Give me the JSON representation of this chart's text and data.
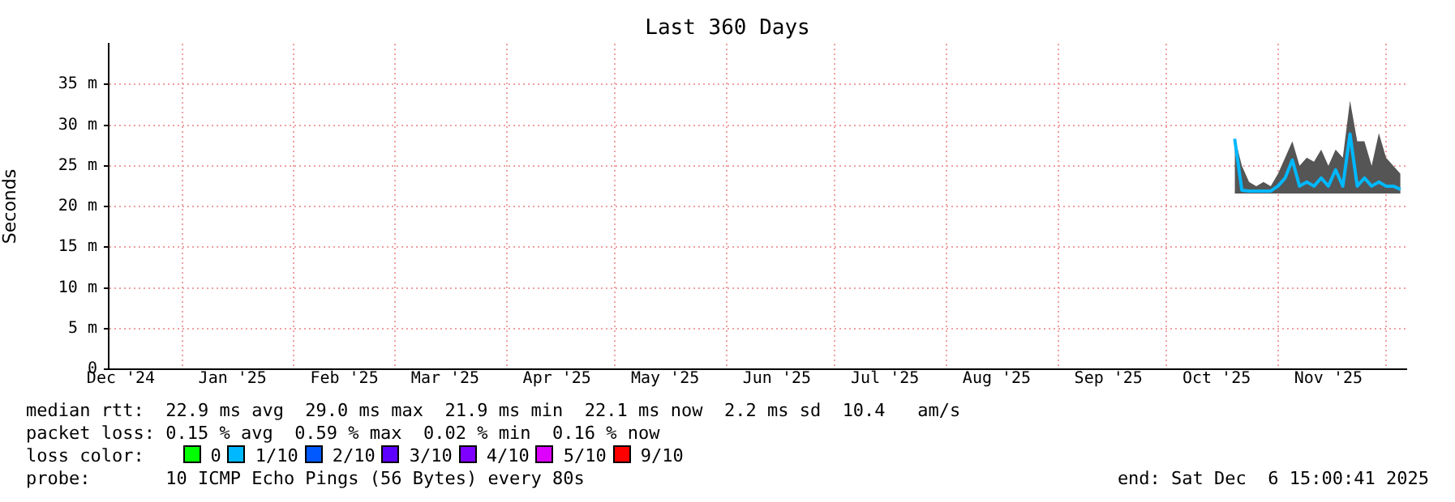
{
  "chart_data": {
    "type": "line",
    "title": "Last 360 Days",
    "ylabel": "Seconds",
    "x": [
      "2025-10-20",
      "2025-10-22",
      "2025-10-24",
      "2025-10-26",
      "2025-10-28",
      "2025-10-30",
      "2025-11-01",
      "2025-11-03",
      "2025-11-05",
      "2025-11-07",
      "2025-11-09",
      "2025-11-11",
      "2025-11-13",
      "2025-11-15",
      "2025-11-17",
      "2025-11-19",
      "2025-11-21",
      "2025-11-23",
      "2025-11-25",
      "2025-11-27",
      "2025-11-29",
      "2025-12-01",
      "2025-12-03",
      "2025-12-05"
    ],
    "series": [
      {
        "color": "#00b8ff",
        "values": [
          28.3,
          22.0,
          21.9,
          21.9,
          21.9,
          21.9,
          22.5,
          23.5,
          25.7,
          22.5,
          23.0,
          22.5,
          23.5,
          22.5,
          24.5,
          22.5,
          28.9,
          22.5,
          23.5,
          22.5,
          23.0,
          22.5,
          22.5,
          22.1
        ],
        "lower": [
          21.6,
          21.6,
          21.6,
          21.6,
          21.6,
          21.6,
          21.6,
          21.6,
          21.6,
          21.6,
          21.6,
          21.6,
          21.6,
          21.6,
          21.6,
          21.6,
          21.6,
          21.6,
          21.6,
          21.6,
          21.6,
          21.6,
          21.6,
          21.6
        ],
        "upper": [
          28.5,
          25,
          23,
          22.5,
          23,
          22.5,
          24,
          26,
          28,
          25,
          26,
          25.5,
          27,
          25,
          27,
          26,
          33,
          28,
          28,
          25,
          29,
          26,
          25,
          24
        ]
      }
    ],
    "xlim": [
      "2024-12-11T15:00",
      "2025-12-06T15:00"
    ],
    "xticks": [
      {
        "value": "2024-12-15",
        "label": "Dec '24"
      },
      {
        "value": "2025-01-01",
        "label": null
      },
      {
        "value": "2025-01-15",
        "label": "Jan '25"
      },
      {
        "value": "2025-02-01",
        "label": null
      },
      {
        "value": "2025-02-15",
        "label": "Feb '25"
      },
      {
        "value": "2025-03-01",
        "label": null
      },
      {
        "value": "2025-03-15",
        "label": "Mar '25"
      },
      {
        "value": "2025-04-01",
        "label": null
      },
      {
        "value": "2025-04-15",
        "label": "Apr '25"
      },
      {
        "value": "2025-05-01",
        "label": null
      },
      {
        "value": "2025-05-15",
        "label": "May '25"
      },
      {
        "value": "2025-06-01",
        "label": null
      },
      {
        "value": "2025-06-15",
        "label": "Jun '25"
      },
      {
        "value": "2025-07-01",
        "label": null
      },
      {
        "value": "2025-07-15",
        "label": "Jul '25"
      },
      {
        "value": "2025-08-01",
        "label": null
      },
      {
        "value": "2025-08-15",
        "label": "Aug '25"
      },
      {
        "value": "2025-09-01",
        "label": null
      },
      {
        "value": "2025-09-15",
        "label": "Sep '25"
      },
      {
        "value": "2025-10-01",
        "label": null
      },
      {
        "value": "2025-10-15",
        "label": "Oct '25"
      },
      {
        "value": "2025-11-01",
        "label": null
      },
      {
        "value": "2025-11-15",
        "label": "Nov '25"
      },
      {
        "value": "2025-12-01",
        "label": null
      }
    ],
    "ylim": [
      0,
      40
    ],
    "yticks": [
      {
        "value": 0,
        "label": "0"
      },
      {
        "value": 5,
        "label": "5 m"
      },
      {
        "value": 10,
        "label": "10 m"
      },
      {
        "value": 15,
        "label": "15 m"
      },
      {
        "value": 20,
        "label": "20 m"
      },
      {
        "value": 25,
        "label": "25 m"
      },
      {
        "value": 30,
        "label": "30 m"
      },
      {
        "value": 35,
        "label": "35 m"
      }
    ],
    "grid": true,
    "legend": false,
    "marker": "none",
    "line_style": "solid",
    "annotations": [
      "median rtt:  22.9 ms avg  29.0 ms max  21.9 ms min  22.1 ms now  2.2 ms sd  10.4   am/s",
      "packet loss: 0.15 % avg  0.59 % max  0.02 % min  0.16 % now",
      "loss color:",
      "0",
      "1/10",
      "2/10",
      "3/10",
      "4/10",
      "5/10",
      "9/10",
      "probe:       10 ICMP Echo Pings (56 Bytes) every 80s",
      "end: Sat Dec  6 15:00:41 2025"
    ]
  }
}
